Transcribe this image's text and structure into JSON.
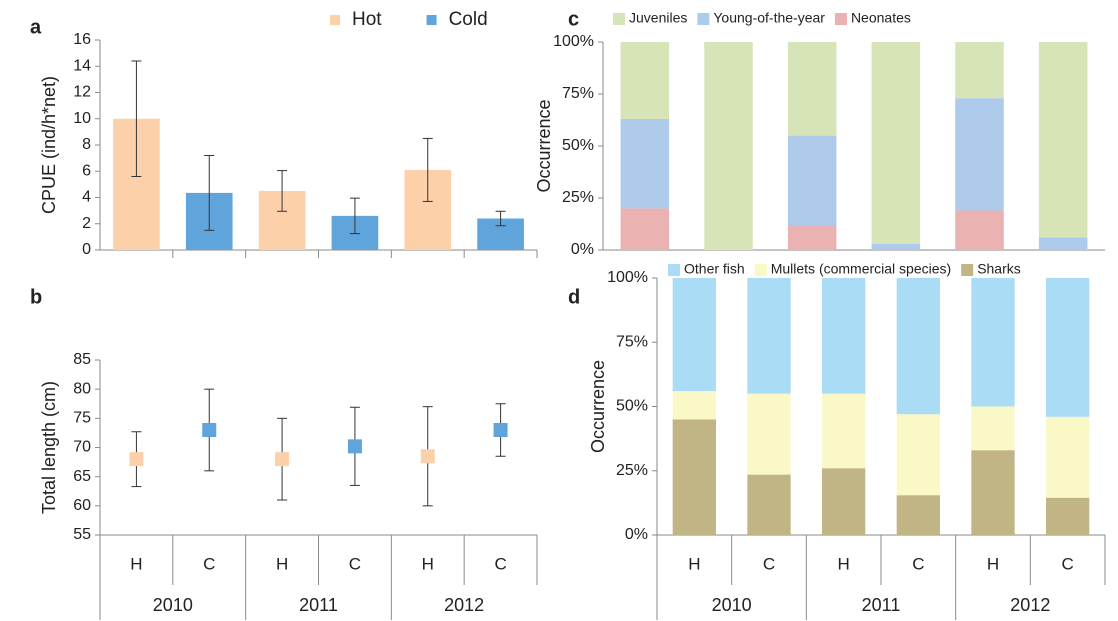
{
  "chart_data": [
    {
      "type": "bar",
      "label": "a",
      "ylabel": "CPUE (ind/h*net)",
      "ylim": [
        0,
        16
      ],
      "yticks": [
        0,
        2,
        4,
        6,
        8,
        10,
        12,
        14,
        16
      ],
      "legend": "top-right",
      "series": [
        {
          "name": "Hot",
          "color": "#fcd1aa",
          "values": [
            10,
            null,
            4.5,
            null,
            6.1,
            null
          ],
          "errors": [
            4.4,
            null,
            1.55,
            null,
            2.4,
            null
          ]
        },
        {
          "name": "Cold",
          "color": "#5fa5dc",
          "values": [
            null,
            4.35,
            null,
            2.6,
            null,
            2.4
          ],
          "errors": [
            null,
            2.85,
            null,
            1.35,
            null,
            0.55
          ]
        }
      ]
    },
    {
      "type": "scatter",
      "label": "b",
      "ylabel": "Total length (cm)",
      "ylim": [
        55,
        85
      ],
      "yticks": [
        55,
        60,
        65,
        70,
        75,
        80,
        85
      ],
      "categories": [
        "H",
        "C",
        "H",
        "C",
        "H",
        "C"
      ],
      "groups": [
        "2010",
        "2011",
        "2012"
      ],
      "values": [
        68,
        73,
        68,
        70.2,
        68.5,
        73
      ],
      "errors": [
        4.7,
        7,
        7,
        6.7,
        8.5,
        4.5
      ],
      "colors": [
        "#fcd1aa",
        "#5fa5dc",
        "#fcd1aa",
        "#5fa5dc",
        "#fcd1aa",
        "#5fa5dc"
      ]
    },
    {
      "type": "stacked_bar",
      "label": "c",
      "ylabel": "Occurrence",
      "ylim": [
        0,
        100
      ],
      "legend": "top",
      "yticks": [
        {
          "value": 0,
          "label": "0%"
        },
        {
          "value": 25,
          "label": "25%"
        },
        {
          "value": 50,
          "label": "50%"
        },
        {
          "value": 75,
          "label": "75%"
        },
        {
          "value": 100,
          "label": "100%"
        }
      ],
      "series": [
        {
          "name": "Juveniles",
          "color": "#d6e4b8",
          "values": [
            37,
            100,
            45,
            97,
            27,
            94
          ]
        },
        {
          "name": "Young-of-the-year",
          "color": "#aecbec",
          "values": [
            43,
            0,
            43,
            3,
            54,
            6
          ]
        },
        {
          "name": "Neonates",
          "color": "#ebb2b2",
          "values": [
            20,
            0,
            12,
            0,
            19,
            0
          ]
        }
      ]
    },
    {
      "type": "stacked_bar",
      "label": "d",
      "ylabel": "Occurrence",
      "ylim": [
        0,
        100
      ],
      "legend": "top",
      "yticks": [
        {
          "value": 0,
          "label": "0%"
        },
        {
          "value": 25,
          "label": "25%"
        },
        {
          "value": 50,
          "label": "50%"
        },
        {
          "value": 75,
          "label": "75%"
        },
        {
          "value": 100,
          "label": "100%"
        }
      ],
      "categories": [
        "H",
        "C",
        "H",
        "C",
        "H",
        "C"
      ],
      "groups": [
        "2010",
        "2011",
        "2012"
      ],
      "series": [
        {
          "name": "Other fish",
          "color": "#abdcf6",
          "values": [
            44,
            45,
            45,
            53,
            50,
            54
          ]
        },
        {
          "name": "Mullets (commercial species)",
          "color": "#fbf8c8",
          "values": [
            11,
            31.5,
            29,
            31.5,
            17,
            31.5
          ]
        },
        {
          "name": "Sharks",
          "color": "#c1b586",
          "values": [
            45,
            23.5,
            26,
            15.5,
            33,
            14.5
          ]
        }
      ]
    }
  ]
}
